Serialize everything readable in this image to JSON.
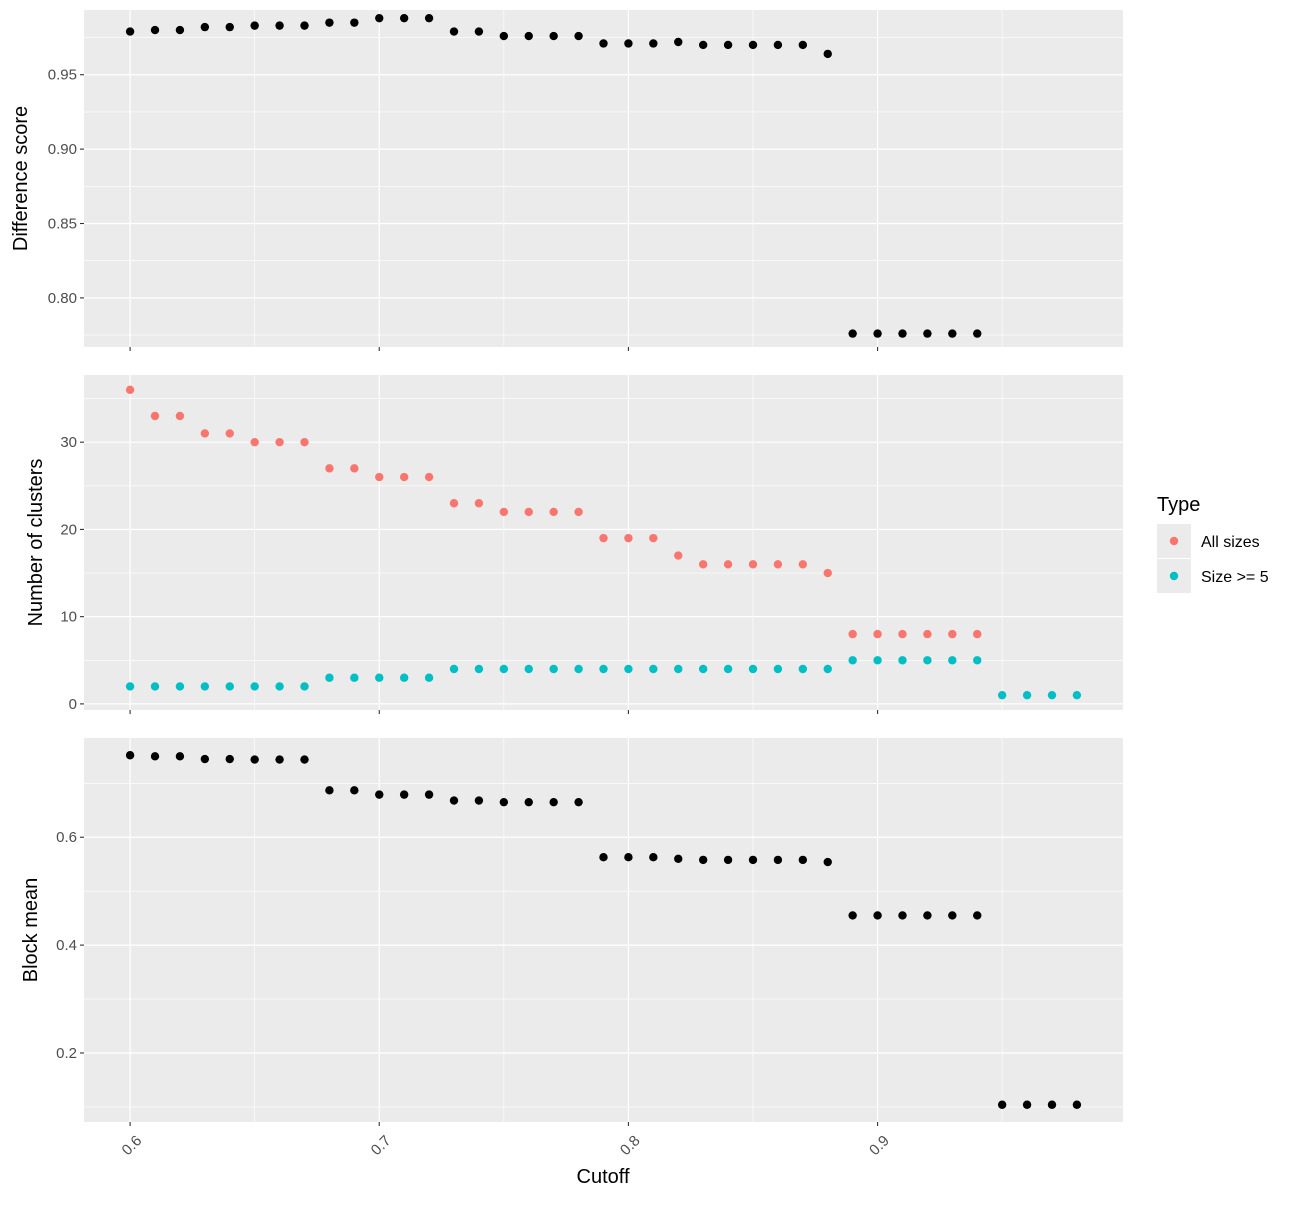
{
  "chart_data": [
    {
      "type": "scatter",
      "ylabel": "Difference score",
      "x": [
        0.6,
        0.61,
        0.62,
        0.63,
        0.64,
        0.65,
        0.66,
        0.67,
        0.68,
        0.69,
        0.7,
        0.71,
        0.72,
        0.73,
        0.74,
        0.75,
        0.76,
        0.77,
        0.78,
        0.79,
        0.8,
        0.81,
        0.82,
        0.83,
        0.84,
        0.85,
        0.86,
        0.87,
        0.88,
        0.89,
        0.9,
        0.91,
        0.92,
        0.93,
        0.94
      ],
      "y": [
        0.979,
        0.98,
        0.98,
        0.982,
        0.982,
        0.983,
        0.983,
        0.983,
        0.985,
        0.985,
        0.988,
        0.988,
        0.988,
        0.979,
        0.979,
        0.976,
        0.976,
        0.976,
        0.976,
        0.971,
        0.971,
        0.971,
        0.972,
        0.97,
        0.97,
        0.97,
        0.97,
        0.97,
        0.964,
        0.776,
        0.776,
        0.776,
        0.776,
        0.776,
        0.776
      ],
      "ylim": [
        0.767,
        0.9935
      ],
      "yticks": [
        0.8,
        0.85,
        0.9,
        0.95
      ],
      "ytick_labels": [
        "0.80",
        "0.85",
        "0.90",
        "0.95"
      ],
      "color": "#000000"
    },
    {
      "type": "scatter",
      "ylabel": "Number of clusters",
      "x": [
        0.6,
        0.61,
        0.62,
        0.63,
        0.64,
        0.65,
        0.66,
        0.67,
        0.68,
        0.69,
        0.7,
        0.71,
        0.72,
        0.73,
        0.74,
        0.75,
        0.76,
        0.77,
        0.78,
        0.79,
        0.8,
        0.81,
        0.82,
        0.83,
        0.84,
        0.85,
        0.86,
        0.87,
        0.88,
        0.89,
        0.9,
        0.91,
        0.92,
        0.93,
        0.94,
        0.95,
        0.96,
        0.97,
        0.98
      ],
      "series": [
        {
          "name": "All sizes",
          "color": "#F8766D",
          "values": [
            36,
            33,
            33,
            31,
            31,
            30,
            30,
            30,
            27,
            27,
            26,
            26,
            26,
            23,
            23,
            22,
            22,
            22,
            22,
            19,
            19,
            19,
            17,
            16,
            16,
            16,
            16,
            16,
            15,
            8,
            8,
            8,
            8,
            8,
            8,
            null,
            null,
            null,
            null
          ]
        },
        {
          "name": "Size >= 5",
          "color": "#00BFC4",
          "values": [
            2,
            2,
            2,
            2,
            2,
            2,
            2,
            2,
            3,
            3,
            3,
            3,
            3,
            4,
            4,
            4,
            4,
            4,
            4,
            4,
            4,
            4,
            4,
            4,
            4,
            4,
            4,
            4,
            4,
            5,
            5,
            5,
            5,
            5,
            5,
            1,
            1,
            1,
            1
          ]
        }
      ],
      "ylim": [
        -0.7,
        37.7
      ],
      "yticks": [
        0,
        10,
        20,
        30
      ],
      "ytick_labels": [
        "0",
        "10",
        "20",
        "30"
      ]
    },
    {
      "type": "scatter",
      "ylabel": "Block mean",
      "x": [
        0.6,
        0.61,
        0.62,
        0.63,
        0.64,
        0.65,
        0.66,
        0.67,
        0.68,
        0.69,
        0.7,
        0.71,
        0.72,
        0.73,
        0.74,
        0.75,
        0.76,
        0.77,
        0.78,
        0.79,
        0.8,
        0.81,
        0.82,
        0.83,
        0.84,
        0.85,
        0.86,
        0.87,
        0.88,
        0.89,
        0.9,
        0.91,
        0.92,
        0.93,
        0.94,
        0.95,
        0.96,
        0.97,
        0.98
      ],
      "y": [
        0.752,
        0.75,
        0.75,
        0.745,
        0.745,
        0.744,
        0.744,
        0.744,
        0.687,
        0.687,
        0.679,
        0.679,
        0.679,
        0.668,
        0.668,
        0.665,
        0.665,
        0.665,
        0.665,
        0.563,
        0.563,
        0.563,
        0.56,
        0.558,
        0.558,
        0.558,
        0.558,
        0.558,
        0.554,
        0.455,
        0.455,
        0.455,
        0.455,
        0.455,
        0.455,
        0.104,
        0.104,
        0.104,
        0.104
      ],
      "ylim": [
        0.072,
        0.784
      ],
      "yticks": [
        0.2,
        0.4,
        0.6
      ],
      "ytick_labels": [
        "0.2",
        "0.4",
        "0.6"
      ],
      "color": "#000000"
    }
  ],
  "x_axis": {
    "label": "Cutoff",
    "xlim": [
      0.5815,
      0.9985
    ],
    "ticks": [
      0.6,
      0.7,
      0.8,
      0.9
    ],
    "tick_labels": [
      "0.6",
      "0.7",
      "0.8",
      "0.9"
    ]
  },
  "legend": {
    "title": "Type",
    "placement": "right",
    "entries": [
      {
        "label": "All sizes",
        "color": "#F8766D"
      },
      {
        "label": "Size >= 5",
        "color": "#00BFC4"
      }
    ]
  },
  "panel_background": "#EBEBEB",
  "grid": true,
  "grid_color": "#FFFFFF"
}
